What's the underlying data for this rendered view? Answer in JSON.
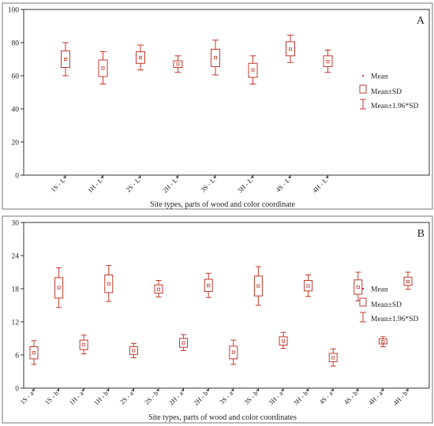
{
  "colors": {
    "box": "#c0392b",
    "axis": "#000000",
    "panel_border": "#555555"
  },
  "chart_data": [
    {
      "type": "box",
      "panel_label": "A",
      "xlabel": "Site types, parts of wood and color coordinate",
      "ylabel": "",
      "ylim": [
        0,
        100
      ],
      "yticks": [
        0,
        20,
        40,
        60,
        80,
        100
      ],
      "legend": {
        "position": "right",
        "entries": [
          "Mean",
          "Mean±SD",
          "Mean±1.96*SD"
        ]
      },
      "categories": [
        "1S - L*",
        "1H - L*",
        "2S - L*",
        "2H - L*",
        "3S - L*",
        "3H - L*",
        "4S - L*",
        "4H - L*"
      ],
      "mean": [
        70,
        64.5,
        71,
        67,
        71,
        63.5,
        76,
        68.5
      ],
      "sd_low": [
        65,
        59.5,
        67.5,
        65,
        65.5,
        59,
        72,
        65.5
      ],
      "sd_high": [
        75,
        69.5,
        74.5,
        69,
        76,
        67.5,
        80.5,
        72
      ],
      "ci_low": [
        60,
        55,
        63.5,
        62,
        60.5,
        55,
        68,
        62
      ],
      "ci_high": [
        80,
        74.5,
        78.5,
        72,
        81.5,
        72,
        84.5,
        75.5
      ]
    },
    {
      "type": "box",
      "panel_label": "B",
      "xlabel": "Site types, parts of wood and color coordinates",
      "ylabel": "",
      "ylim": [
        0,
        30
      ],
      "yticks": [
        0,
        6,
        12,
        18,
        24,
        30
      ],
      "legend": {
        "position": "right",
        "entries": [
          "Mean",
          "Mean±SD",
          "Mean±1.96*SD"
        ]
      },
      "categories": [
        "1S - a*",
        "1S - b*",
        "1H - a*",
        "1H - b*",
        "2S - a*",
        "2S - b*",
        "2H - a*",
        "2H - b*",
        "3S - a*",
        "3S - b*",
        "3H - a*",
        "3H - b*",
        "4S - a*",
        "4S - b*",
        "4H - a*",
        "4H - b*"
      ],
      "mean": [
        6.4,
        18.2,
        7.9,
        18.9,
        6.8,
        17.9,
        8.2,
        18.6,
        6.5,
        18.5,
        8.5,
        18.5,
        5.5,
        18.3,
        8.4,
        19.3
      ],
      "sd_low": [
        5.3,
        16.3,
        7.0,
        17.3,
        6.1,
        17.2,
        7.4,
        17.5,
        5.3,
        16.7,
        7.8,
        17.6,
        4.8,
        17.0,
        8.0,
        18.6
      ],
      "sd_high": [
        7.5,
        20.0,
        8.7,
        20.5,
        7.5,
        18.7,
        9.0,
        19.7,
        7.6,
        20.3,
        9.3,
        19.5,
        6.3,
        19.6,
        8.9,
        20.1
      ],
      "ci_low": [
        4.3,
        14.6,
        6.2,
        15.7,
        5.5,
        16.5,
        6.8,
        16.4,
        4.3,
        15.0,
        7.2,
        16.6,
        4.0,
        15.8,
        7.5,
        17.9
      ],
      "ci_high": [
        8.6,
        21.8,
        9.6,
        22.2,
        8.1,
        19.5,
        9.7,
        20.8,
        8.7,
        22.0,
        10.1,
        20.5,
        7.1,
        21.0,
        9.3,
        21.0
      ]
    }
  ]
}
